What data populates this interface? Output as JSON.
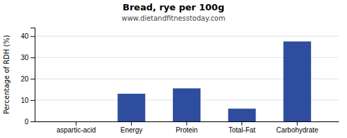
{
  "chart_data": {
    "type": "bar",
    "title": "Bread, rye per 100g",
    "subtitle": "www.dietandfitnesstoday.com",
    "categories": [
      "aspartic-acid",
      "Energy",
      "Protein",
      "Total-Fat",
      "Carbohydrate"
    ],
    "values": [
      0,
      13.0,
      15.5,
      6.0,
      37.5
    ],
    "color": "#2e4d9e",
    "ylabel": "Percentage of RDH (%)",
    "ylim": [
      0,
      44
    ],
    "yticks": [
      0,
      10,
      20,
      30,
      40
    ],
    "grid": true
  }
}
